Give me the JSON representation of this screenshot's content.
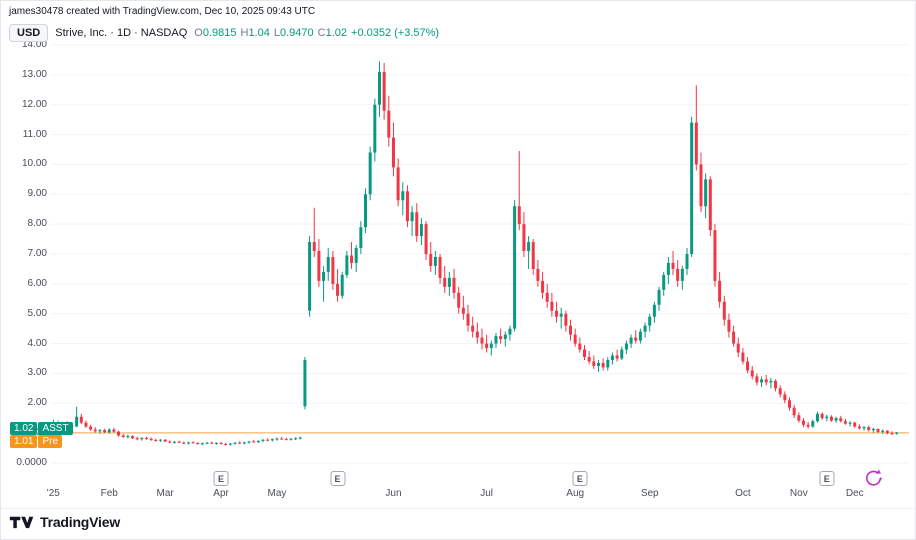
{
  "header": {
    "attribution": "james30478 created with TradingView.com, Dec 10, 2025 09:43 UTC"
  },
  "legend": {
    "currency": "USD",
    "symbol_title": "Strive, Inc. · 1D · NASDAQ",
    "ohlc": {
      "o_label": "O",
      "o": "0.9815",
      "h_label": "H",
      "h": "1.04",
      "l_label": "L",
      "l": "0.9470",
      "c_label": "C",
      "c": "1.02",
      "change": "+0.0352 (+3.57%)"
    }
  },
  "price_scale": {
    "last_badge": "1.02",
    "symbol_badge": "ASST",
    "pre_badge": "1.01",
    "pre_label": "Pre"
  },
  "footer": {
    "brand": "TradingView"
  },
  "colors": {
    "up": "#089981",
    "down": "#f23645",
    "pre_line": "#f7941e",
    "grid": "#f0f3fa",
    "accent_purple": "#c22ece"
  },
  "chart_data": {
    "type": "candlestick",
    "title": "Strive, Inc. 1D NASDAQ (USD)",
    "ylim": [
      0,
      14
    ],
    "grid": true,
    "earnings_label": "E",
    "pre_market_price": 1.01,
    "y_ticks": [
      {
        "value": 14,
        "label": "14.00"
      },
      {
        "value": 13,
        "label": "13.00"
      },
      {
        "value": 12,
        "label": "12.00"
      },
      {
        "value": 11,
        "label": "11.00"
      },
      {
        "value": 10,
        "label": "10.00"
      },
      {
        "value": 9,
        "label": "9.00"
      },
      {
        "value": 8,
        "label": "8.00"
      },
      {
        "value": 7,
        "label": "7.00"
      },
      {
        "value": 6,
        "label": "6.00"
      },
      {
        "value": 5,
        "label": "5.00"
      },
      {
        "value": 4,
        "label": "4.00"
      },
      {
        "value": 3,
        "label": "3.00"
      },
      {
        "value": 2,
        "label": "2.00"
      },
      {
        "value": 1,
        "label": "1.00"
      },
      {
        "value": 0,
        "label": "0.0000"
      }
    ],
    "x_ticks": [
      {
        "label": "'25",
        "index": 0
      },
      {
        "label": "Feb",
        "index": 12
      },
      {
        "label": "Mar",
        "index": 24
      },
      {
        "label": "Apr",
        "index": 36
      },
      {
        "label": "May",
        "index": 48
      },
      {
        "label": "Jun",
        "index": 73
      },
      {
        "label": "Jul",
        "index": 93
      },
      {
        "label": "Aug",
        "index": 112
      },
      {
        "label": "Sep",
        "index": 128
      },
      {
        "label": "Oct",
        "index": 148
      },
      {
        "label": "Nov",
        "index": 160
      },
      {
        "label": "Dec",
        "index": 172
      }
    ],
    "earnings_marker_indices": [
      36,
      61,
      113,
      166
    ],
    "candles": [
      [
        1.3,
        1.45,
        1.22,
        1.35
      ],
      [
        1.35,
        1.42,
        1.25,
        1.28
      ],
      [
        1.28,
        1.38,
        1.2,
        1.32
      ],
      [
        1.32,
        1.4,
        1.24,
        1.26
      ],
      [
        1.26,
        1.35,
        1.18,
        1.22
      ],
      [
        1.22,
        1.88,
        1.2,
        1.55
      ],
      [
        1.55,
        1.65,
        1.3,
        1.35
      ],
      [
        1.35,
        1.42,
        1.18,
        1.22
      ],
      [
        1.22,
        1.28,
        1.08,
        1.12
      ],
      [
        1.12,
        1.2,
        1.02,
        1.06
      ],
      [
        1.06,
        1.14,
        0.98,
        1.1
      ],
      [
        1.1,
        1.15,
        1.0,
        1.03
      ],
      [
        1.03,
        1.16,
        0.98,
        1.12
      ],
      [
        1.12,
        1.18,
        1.02,
        1.05
      ],
      [
        1.05,
        1.08,
        0.88,
        0.92
      ],
      [
        0.92,
        0.98,
        0.84,
        0.87
      ],
      [
        0.87,
        0.95,
        0.82,
        0.9
      ],
      [
        0.9,
        0.93,
        0.8,
        0.83
      ],
      [
        0.83,
        0.88,
        0.76,
        0.8
      ],
      [
        0.8,
        0.86,
        0.75,
        0.84
      ],
      [
        0.84,
        0.88,
        0.78,
        0.81
      ],
      [
        0.81,
        0.85,
        0.74,
        0.77
      ],
      [
        0.77,
        0.82,
        0.72,
        0.75
      ],
      [
        0.75,
        0.8,
        0.71,
        0.78
      ],
      [
        0.78,
        0.8,
        0.7,
        0.72
      ],
      [
        0.72,
        0.76,
        0.66,
        0.69
      ],
      [
        0.69,
        0.74,
        0.65,
        0.71
      ],
      [
        0.71,
        0.75,
        0.67,
        0.68
      ],
      [
        0.68,
        0.72,
        0.63,
        0.66
      ],
      [
        0.66,
        0.71,
        0.62,
        0.69
      ],
      [
        0.69,
        0.73,
        0.65,
        0.67
      ],
      [
        0.67,
        0.7,
        0.62,
        0.64
      ],
      [
        0.64,
        0.69,
        0.6,
        0.66
      ],
      [
        0.66,
        0.7,
        0.63,
        0.68
      ],
      [
        0.68,
        0.72,
        0.64,
        0.65
      ],
      [
        0.65,
        0.69,
        0.61,
        0.67
      ],
      [
        0.67,
        0.71,
        0.62,
        0.64
      ],
      [
        0.64,
        0.68,
        0.59,
        0.62
      ],
      [
        0.62,
        0.67,
        0.58,
        0.65
      ],
      [
        0.65,
        0.7,
        0.61,
        0.68
      ],
      [
        0.68,
        0.73,
        0.64,
        0.66
      ],
      [
        0.66,
        0.71,
        0.62,
        0.69
      ],
      [
        0.69,
        0.74,
        0.65,
        0.72
      ],
      [
        0.72,
        0.77,
        0.68,
        0.7
      ],
      [
        0.7,
        0.76,
        0.66,
        0.74
      ],
      [
        0.74,
        0.8,
        0.7,
        0.78
      ],
      [
        0.78,
        0.83,
        0.73,
        0.76
      ],
      [
        0.76,
        0.82,
        0.72,
        0.8
      ],
      [
        0.8,
        0.85,
        0.75,
        0.82
      ],
      [
        0.82,
        0.87,
        0.78,
        0.8
      ],
      [
        0.8,
        0.84,
        0.76,
        0.79
      ],
      [
        0.79,
        0.84,
        0.75,
        0.81
      ],
      [
        0.81,
        0.86,
        0.77,
        0.83
      ],
      [
        0.83,
        0.88,
        0.79,
        0.85
      ],
      [
        1.9,
        3.55,
        1.8,
        3.45
      ],
      [
        5.1,
        7.6,
        4.9,
        7.4
      ],
      [
        7.4,
        8.55,
        6.9,
        7.1
      ],
      [
        7.1,
        7.5,
        5.9,
        6.1
      ],
      [
        6.1,
        6.6,
        5.4,
        6.4
      ],
      [
        6.4,
        7.2,
        6.1,
        6.9
      ],
      [
        6.9,
        7.1,
        5.8,
        6.0
      ],
      [
        6.0,
        6.5,
        5.4,
        5.6
      ],
      [
        5.6,
        6.4,
        5.5,
        6.3
      ],
      [
        6.3,
        7.1,
        6.2,
        6.95
      ],
      [
        6.95,
        7.4,
        6.5,
        6.7
      ],
      [
        6.7,
        7.3,
        6.4,
        7.2
      ],
      [
        7.2,
        8.1,
        7.0,
        7.9
      ],
      [
        7.9,
        9.2,
        7.7,
        9.0
      ],
      [
        9.0,
        10.6,
        8.8,
        10.4
      ],
      [
        10.4,
        12.2,
        10.1,
        12.0
      ],
      [
        12.0,
        13.45,
        11.6,
        13.1
      ],
      [
        13.1,
        13.4,
        11.5,
        11.8
      ],
      [
        11.8,
        12.3,
        10.6,
        10.9
      ],
      [
        10.9,
        11.4,
        9.6,
        9.9
      ],
      [
        9.9,
        10.2,
        8.6,
        8.8
      ],
      [
        8.8,
        9.4,
        8.3,
        9.1
      ],
      [
        9.1,
        9.3,
        7.9,
        8.1
      ],
      [
        8.1,
        8.6,
        7.6,
        8.4
      ],
      [
        8.4,
        8.7,
        7.4,
        7.6
      ],
      [
        7.6,
        8.2,
        7.3,
        8.0
      ],
      [
        8.0,
        8.1,
        6.8,
        7.0
      ],
      [
        7.0,
        7.4,
        6.4,
        6.6
      ],
      [
        6.6,
        7.1,
        6.3,
        6.9
      ],
      [
        6.9,
        7.0,
        6.0,
        6.2
      ],
      [
        6.2,
        6.6,
        5.7,
        5.9
      ],
      [
        5.9,
        6.4,
        5.6,
        6.2
      ],
      [
        6.2,
        6.5,
        5.5,
        5.7
      ],
      [
        5.7,
        5.9,
        5.0,
        5.2
      ],
      [
        5.2,
        5.6,
        4.8,
        5.0
      ],
      [
        5.0,
        5.3,
        4.4,
        4.6
      ],
      [
        4.6,
        4.9,
        4.2,
        4.4
      ],
      [
        4.4,
        4.7,
        4.0,
        4.2
      ],
      [
        4.2,
        4.5,
        3.8,
        4.0
      ],
      [
        4.0,
        4.3,
        3.7,
        3.85
      ],
      [
        3.85,
        4.1,
        3.6,
        4.0
      ],
      [
        4.0,
        4.35,
        3.85,
        4.25
      ],
      [
        4.25,
        4.5,
        4.0,
        4.15
      ],
      [
        4.15,
        4.4,
        3.9,
        4.3
      ],
      [
        4.3,
        4.6,
        4.1,
        4.5
      ],
      [
        4.5,
        8.8,
        4.4,
        8.6
      ],
      [
        8.6,
        10.45,
        7.8,
        8.0
      ],
      [
        8.0,
        8.4,
        6.9,
        7.1
      ],
      [
        7.1,
        7.6,
        6.5,
        7.4
      ],
      [
        7.4,
        7.5,
        6.3,
        6.5
      ],
      [
        6.5,
        6.8,
        5.9,
        6.1
      ],
      [
        6.1,
        6.4,
        5.5,
        5.7
      ],
      [
        5.7,
        6.0,
        5.2,
        5.4
      ],
      [
        5.4,
        5.7,
        4.9,
        5.1
      ],
      [
        5.1,
        5.4,
        4.7,
        4.9
      ],
      [
        4.9,
        5.2,
        4.5,
        5.0
      ],
      [
        5.0,
        5.1,
        4.4,
        4.6
      ],
      [
        4.6,
        4.8,
        4.1,
        4.3
      ],
      [
        4.3,
        4.5,
        3.9,
        4.0
      ],
      [
        4.0,
        4.2,
        3.7,
        3.8
      ],
      [
        3.8,
        3.95,
        3.45,
        3.55
      ],
      [
        3.55,
        3.75,
        3.3,
        3.4
      ],
      [
        3.4,
        3.6,
        3.15,
        3.25
      ],
      [
        3.25,
        3.45,
        3.05,
        3.35
      ],
      [
        3.35,
        3.5,
        3.1,
        3.2
      ],
      [
        3.2,
        3.55,
        3.1,
        3.45
      ],
      [
        3.45,
        3.7,
        3.3,
        3.6
      ],
      [
        3.6,
        3.8,
        3.4,
        3.5
      ],
      [
        3.5,
        3.9,
        3.45,
        3.8
      ],
      [
        3.8,
        4.1,
        3.65,
        4.0
      ],
      [
        4.0,
        4.3,
        3.85,
        4.2
      ],
      [
        4.2,
        4.45,
        4.0,
        4.1
      ],
      [
        4.1,
        4.5,
        4.0,
        4.4
      ],
      [
        4.4,
        4.7,
        4.2,
        4.6
      ],
      [
        4.6,
        5.0,
        4.4,
        4.9
      ],
      [
        4.9,
        5.4,
        4.7,
        5.3
      ],
      [
        5.3,
        5.9,
        5.1,
        5.8
      ],
      [
        5.8,
        6.4,
        5.6,
        6.3
      ],
      [
        6.3,
        6.9,
        6.0,
        6.7
      ],
      [
        6.7,
        7.1,
        6.3,
        6.5
      ],
      [
        6.5,
        6.8,
        5.9,
        6.1
      ],
      [
        6.1,
        6.6,
        5.8,
        6.5
      ],
      [
        6.5,
        7.2,
        6.3,
        7.0
      ],
      [
        7.0,
        11.6,
        6.9,
        11.4
      ],
      [
        11.4,
        12.65,
        9.8,
        10.0
      ],
      [
        10.0,
        10.4,
        8.4,
        8.6
      ],
      [
        8.6,
        9.7,
        8.2,
        9.5
      ],
      [
        9.5,
        9.6,
        7.6,
        7.8
      ],
      [
        7.8,
        8.0,
        5.9,
        6.1
      ],
      [
        6.1,
        6.4,
        5.2,
        5.4
      ],
      [
        5.4,
        5.6,
        4.6,
        4.8
      ],
      [
        4.8,
        5.0,
        4.2,
        4.4
      ],
      [
        4.4,
        4.6,
        3.9,
        4.0
      ],
      [
        4.0,
        4.2,
        3.55,
        3.7
      ],
      [
        3.7,
        3.85,
        3.3,
        3.4
      ],
      [
        3.4,
        3.55,
        3.0,
        3.1
      ],
      [
        3.1,
        3.25,
        2.8,
        2.9
      ],
      [
        2.9,
        3.0,
        2.6,
        2.7
      ],
      [
        2.7,
        2.9,
        2.55,
        2.8
      ],
      [
        2.8,
        2.95,
        2.6,
        2.7
      ],
      [
        2.7,
        2.85,
        2.5,
        2.75
      ],
      [
        2.75,
        2.8,
        2.4,
        2.5
      ],
      [
        2.5,
        2.6,
        2.2,
        2.3
      ],
      [
        2.3,
        2.4,
        2.0,
        2.1
      ],
      [
        2.1,
        2.2,
        1.75,
        1.85
      ],
      [
        1.85,
        1.95,
        1.5,
        1.6
      ],
      [
        1.6,
        1.7,
        1.35,
        1.42
      ],
      [
        1.42,
        1.5,
        1.2,
        1.28
      ],
      [
        1.28,
        1.38,
        1.15,
        1.22
      ],
      [
        1.22,
        1.45,
        1.18,
        1.4
      ],
      [
        1.4,
        1.72,
        1.35,
        1.65
      ],
      [
        1.65,
        1.7,
        1.45,
        1.5
      ],
      [
        1.5,
        1.62,
        1.4,
        1.55
      ],
      [
        1.55,
        1.6,
        1.38,
        1.42
      ],
      [
        1.42,
        1.55,
        1.35,
        1.5
      ],
      [
        1.5,
        1.58,
        1.36,
        1.4
      ],
      [
        1.4,
        1.48,
        1.28,
        1.32
      ],
      [
        1.32,
        1.4,
        1.22,
        1.35
      ],
      [
        1.35,
        1.38,
        1.18,
        1.22
      ],
      [
        1.22,
        1.3,
        1.12,
        1.16
      ],
      [
        1.16,
        1.24,
        1.08,
        1.2
      ],
      [
        1.2,
        1.25,
        1.05,
        1.1
      ],
      [
        1.1,
        1.18,
        1.02,
        1.14
      ],
      [
        1.14,
        1.16,
        1.0,
        1.04
      ],
      [
        1.04,
        1.12,
        0.98,
        1.08
      ],
      [
        1.08,
        1.1,
        0.96,
        1.0
      ],
      [
        1.0,
        1.06,
        0.94,
        0.97
      ],
      [
        0.9815,
        1.04,
        0.947,
        1.02
      ]
    ]
  }
}
